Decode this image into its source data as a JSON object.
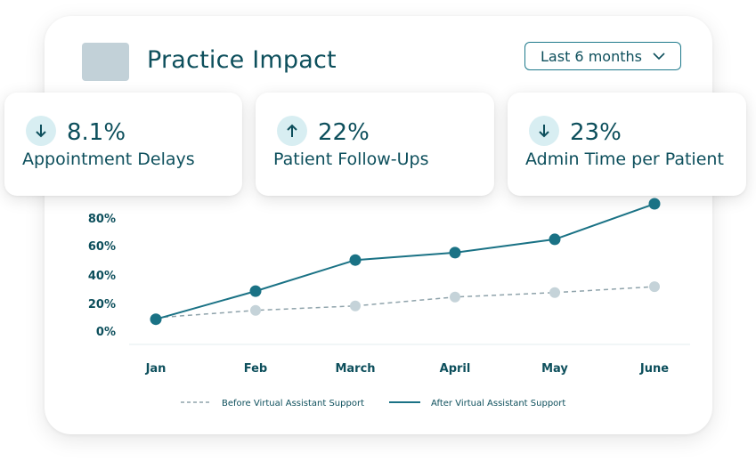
{
  "header": {
    "title": "Practice Impact",
    "period_label": "Last 6 months"
  },
  "kpis": [
    {
      "value": "8.1%",
      "label": "Appointment Delays",
      "direction": "down"
    },
    {
      "value": "22%",
      "label": "Patient Follow-Ups",
      "direction": "up"
    },
    {
      "value": "23%",
      "label": "Admin Time per Patient",
      "direction": "down"
    }
  ],
  "colors": {
    "primary": "#1a7285",
    "text": "#0d4f5c",
    "before": "#c5d3d9",
    "icon_bg": "#d8eef2"
  },
  "chart_data": {
    "type": "line",
    "categories": [
      "Jan",
      "Feb",
      "March",
      "April",
      "May",
      "June"
    ],
    "y_ticks": [
      "0%",
      "20%",
      "40%",
      "60%",
      "80%"
    ],
    "ylim": [
      0,
      80
    ],
    "series": [
      {
        "name": "Before Virtual Assistant Support",
        "values": [
          9,
          14,
          17,
          23,
          26,
          30
        ],
        "style": "dashed"
      },
      {
        "name": "After Virtual Assistant Support",
        "values": [
          8,
          27,
          48,
          53,
          62,
          86
        ],
        "style": "solid"
      }
    ]
  }
}
